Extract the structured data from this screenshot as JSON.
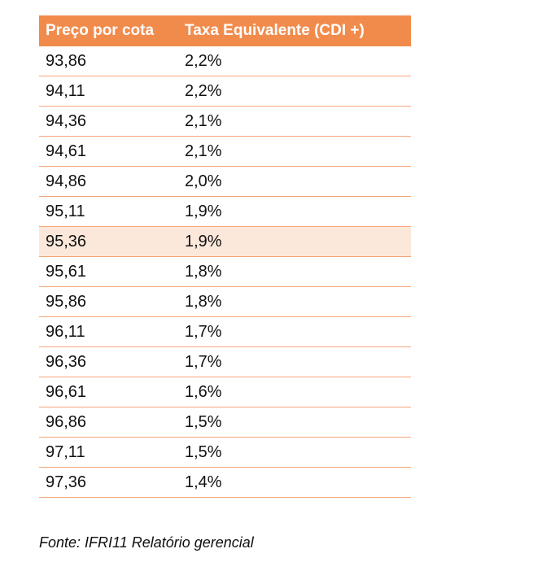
{
  "table": {
    "headers": [
      "Preço por cota",
      "Taxa Equivalente (CDI +)"
    ],
    "rows": [
      [
        "93,86",
        "2,2%"
      ],
      [
        "94,11",
        "2,2%"
      ],
      [
        "94,36",
        "2,1%"
      ],
      [
        "94,61",
        "2,1%"
      ],
      [
        "94,86",
        "2,0%"
      ],
      [
        "95,11",
        "1,9%"
      ],
      [
        "95,36",
        "1,9%"
      ],
      [
        "95,61",
        "1,8%"
      ],
      [
        "95,86",
        "1,8%"
      ],
      [
        "96,11",
        "1,7%"
      ],
      [
        "96,36",
        "1,7%"
      ],
      [
        "96,61",
        "1,6%"
      ],
      [
        "96,86",
        "1,5%"
      ],
      [
        "97,11",
        "1,5%"
      ],
      [
        "97,36",
        "1,4%"
      ]
    ],
    "highlighted_row": 6
  },
  "source": "Fonte: IFRI11 Relatório gerencial",
  "colors": {
    "header_bg": "#f18b4c",
    "row_border": "#f4a57a",
    "highlight_bg": "#fce8da"
  }
}
